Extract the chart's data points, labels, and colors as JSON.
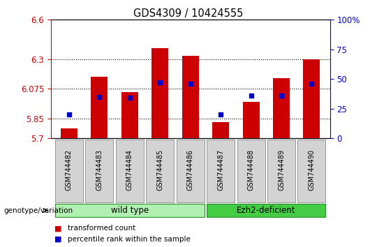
{
  "title": "GDS4309 / 10424555",
  "samples": [
    "GSM744482",
    "GSM744483",
    "GSM744484",
    "GSM744485",
    "GSM744486",
    "GSM744487",
    "GSM744488",
    "GSM744489",
    "GSM744490"
  ],
  "bar_values": [
    5.775,
    6.17,
    6.05,
    6.385,
    6.325,
    5.825,
    5.975,
    6.155,
    6.3
  ],
  "percentile_values": [
    20,
    35,
    34,
    47,
    46,
    20,
    36,
    36,
    46
  ],
  "baseline": 5.7,
  "ylim_left": [
    5.7,
    6.6
  ],
  "ylim_right": [
    0,
    100
  ],
  "yticks_left": [
    5.7,
    5.85,
    6.075,
    6.3,
    6.6
  ],
  "ytick_labels_left": [
    "5.7",
    "5.85",
    "6.075",
    "6.3",
    "6.6"
  ],
  "yticks_right": [
    0,
    25,
    50,
    75,
    100
  ],
  "ytick_labels_right": [
    "0",
    "25",
    "50",
    "75",
    "100%"
  ],
  "dotted_lines": [
    5.85,
    6.075,
    6.3
  ],
  "bar_color": "#cc0000",
  "dot_color": "#0000cc",
  "groups": [
    {
      "label": "wild type",
      "indices": [
        0,
        1,
        2,
        3,
        4
      ],
      "color": "#b0f0b0"
    },
    {
      "label": "Ezh2-deficient",
      "indices": [
        5,
        6,
        7,
        8
      ],
      "color": "#44cc44"
    }
  ],
  "legend_bar_label": "transformed count",
  "legend_dot_label": "percentile rank within the sample",
  "group_label": "genotype/variation",
  "left_tick_color": "#cc0000",
  "right_tick_color": "#0000cc"
}
